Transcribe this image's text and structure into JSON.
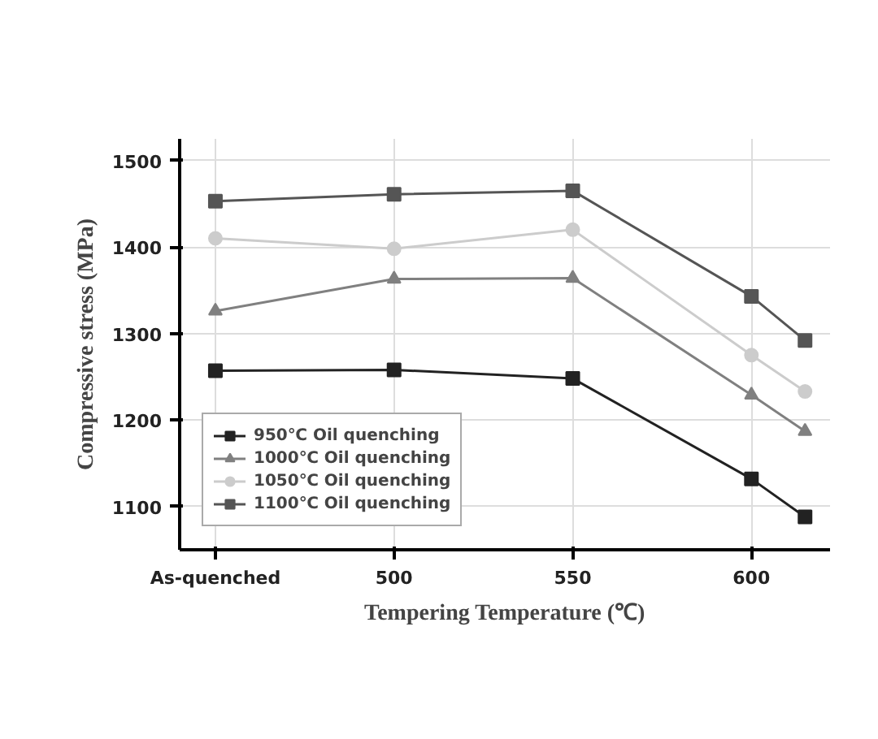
{
  "chart_data": {
    "type": "line",
    "xlabel": "Tempering Temperature (℃)",
    "ylabel": "Compressive stress (MPa)",
    "x": [
      450,
      500,
      550,
      600,
      615
    ],
    "series": [
      {
        "name": "950℃ Oil quenching",
        "color": "#222222",
        "marker": "square",
        "values": [
          1257,
          1258,
          1248,
          1132,
          1088
        ]
      },
      {
        "name": "1000℃ Oil quenching",
        "color": "#808080",
        "marker": "triangle",
        "values": [
          1326,
          1363,
          1364,
          1229,
          1187
        ]
      },
      {
        "name": "1050℃ Oil quenching",
        "color": "#cccccc",
        "marker": "circle",
        "values": [
          1410,
          1398,
          1420,
          1275,
          1233
        ]
      },
      {
        "name": "1100℃ Oil quenching",
        "color": "#555555",
        "marker": "square",
        "values": [
          1453,
          1461,
          1465,
          1343,
          1292
        ]
      }
    ],
    "xlim": [
      440,
      622
    ],
    "xticks": [
      {
        "value": 450,
        "label": "As-quenched"
      },
      500,
      550,
      600
    ],
    "ylim": [
      1050,
      1525
    ],
    "yticks": [
      1100,
      1200,
      1300,
      1400,
      1500
    ],
    "grid": true,
    "legend": "bottom left",
    "line_style": "solid"
  }
}
